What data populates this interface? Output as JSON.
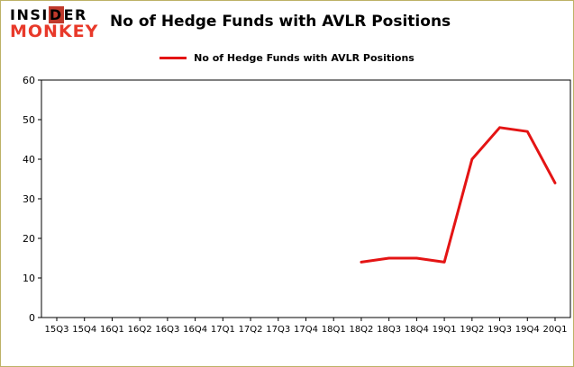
{
  "logo": {
    "line1_pre": "INSI",
    "line1_accent": "D",
    "line1_post": "ER",
    "line2": "MONKEY"
  },
  "header": {
    "title": "No of Hedge Funds with AVLR Positions"
  },
  "legend": {
    "label": "No of Hedge Funds with AVLR Positions"
  },
  "colors": {
    "line_red": "#e41414",
    "brand_red": "#e8392a",
    "logo_accent_bg": "#c0392b"
  },
  "chart_data": {
    "type": "line",
    "title": "No of Hedge Funds with AVLR Positions",
    "categories": [
      "15Q3",
      "15Q4",
      "16Q1",
      "16Q2",
      "16Q3",
      "16Q4",
      "17Q1",
      "17Q2",
      "17Q3",
      "17Q4",
      "18Q1",
      "18Q2",
      "18Q3",
      "18Q4",
      "19Q1",
      "19Q2",
      "19Q3",
      "19Q4",
      "20Q1"
    ],
    "series": [
      {
        "name": "No of Hedge Funds with AVLR Positions",
        "color": "#e41414",
        "points": [
          {
            "x": "18Q2",
            "y": 14
          },
          {
            "x": "18Q3",
            "y": 15
          },
          {
            "x": "18Q4",
            "y": 15
          },
          {
            "x": "19Q1",
            "y": 14
          },
          {
            "x": "19Q2",
            "y": 40
          },
          {
            "x": "19Q3",
            "y": 48
          },
          {
            "x": "19Q4",
            "y": 47
          },
          {
            "x": "20Q1",
            "y": 34
          }
        ]
      }
    ],
    "xlabel": "",
    "ylabel": "",
    "ylim": [
      0,
      60
    ],
    "yticks": [
      0,
      10,
      20,
      30,
      40,
      50,
      60
    ],
    "grid": false,
    "legend_position": "top-center"
  }
}
